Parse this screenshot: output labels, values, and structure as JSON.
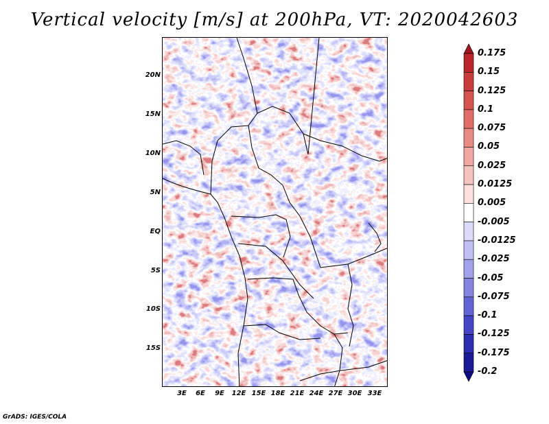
{
  "title": "Vertical velocity [m/s] at 200hPa, VT: 2020042603",
  "lat_labels": [
    "20N",
    "15N",
    "10N",
    "5N",
    "EQ",
    "5S",
    "10S",
    "15S"
  ],
  "lon_labels": [
    "3E",
    "6E",
    "9E",
    "12E",
    "15E",
    "18E",
    "21E",
    "24E",
    "27E",
    "30E",
    "33E"
  ],
  "colorbar": {
    "labels": [
      "0.175",
      "0.15",
      "0.125",
      "0.1",
      "0.075",
      "0.05",
      "0.025",
      "0.0125",
      "0.005",
      "-0.005",
      "-0.0125",
      "-0.025",
      "-0.05",
      "-0.075",
      "-0.1",
      "-0.125",
      "-0.175",
      "-0.2"
    ],
    "colors": [
      "#a0141e",
      "#b8262c",
      "#c83c3c",
      "#d65450",
      "#e06e68",
      "#e98a84",
      "#f0a6a2",
      "#f6c4c0",
      "#fbe0de",
      "#ffffff",
      "#dcdcf8",
      "#c0c0f2",
      "#a2a2ea",
      "#8484e0",
      "#6464d4",
      "#4646c4",
      "#2c2cae",
      "#1a1a96",
      "#0c0c80"
    ]
  },
  "credit": "GrADS: IGES/COLA",
  "chart_data": {
    "type": "heatmap",
    "title": "Vertical velocity [m/s] at 200hPa, VT: 2020042603",
    "variable": "Vertical velocity",
    "units": "m/s",
    "level": "200hPa",
    "valid_time": "2020042603",
    "lon_range": [
      0,
      35
    ],
    "lat_range": [
      -20,
      25
    ],
    "contour_levels": [
      -0.2,
      -0.175,
      -0.125,
      -0.1,
      -0.075,
      -0.05,
      -0.025,
      -0.0125,
      -0.005,
      0.005,
      0.0125,
      0.025,
      0.05,
      0.075,
      0.1,
      0.125,
      0.15,
      0.175
    ],
    "xticks": [
      "3E",
      "6E",
      "9E",
      "12E",
      "15E",
      "18E",
      "21E",
      "24E",
      "27E",
      "30E",
      "33E"
    ],
    "yticks": [
      "20N",
      "15N",
      "10N",
      "5N",
      "EQ",
      "5S",
      "10S",
      "15S"
    ]
  }
}
